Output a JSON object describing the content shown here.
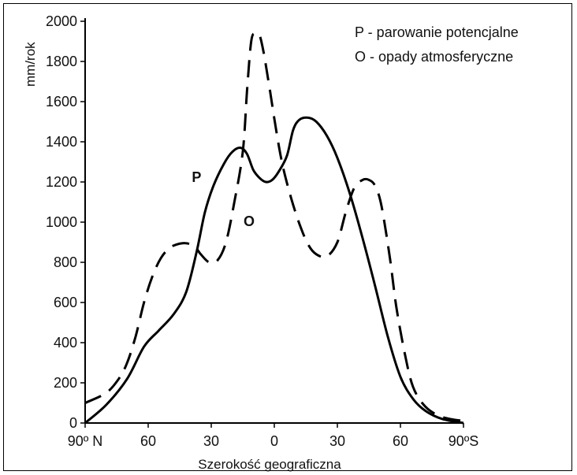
{
  "chart_data": {
    "type": "line",
    "title": "",
    "xlabel": "Szerokość geograficzna",
    "ylabel": "mm/rok",
    "xlim": [
      -90,
      90
    ],
    "ylim": [
      0,
      2000
    ],
    "x_ticks": [
      {
        "value": -90,
        "label": "90º N"
      },
      {
        "value": -60,
        "label": "60"
      },
      {
        "value": -30,
        "label": "30"
      },
      {
        "value": 0,
        "label": "0"
      },
      {
        "value": 30,
        "label": "30"
      },
      {
        "value": 60,
        "label": "60"
      },
      {
        "value": 90,
        "label": "90ºS"
      }
    ],
    "y_ticks": [
      0,
      200,
      400,
      600,
      800,
      1000,
      1200,
      1400,
      1600,
      1800,
      2000
    ],
    "legend": {
      "position": "top-right",
      "entries": [
        "P - parowanie potencjalne",
        "O - opady atmosferyczne"
      ]
    },
    "grid": false,
    "series": [
      {
        "name": "P",
        "style": "solid",
        "x": [
          -90,
          -80,
          -70,
          -62,
          -55,
          -48,
          -42,
          -37,
          -33,
          -29,
          -24,
          -20,
          -16,
          -13,
          -10,
          -7,
          -4,
          -1,
          2,
          6,
          9,
          12,
          16,
          20,
          25,
          30,
          36,
          42,
          48,
          54,
          60,
          66,
          72,
          80,
          90
        ],
        "values": [
          0,
          90,
          220,
          380,
          460,
          540,
          650,
          850,
          1050,
          1180,
          1290,
          1350,
          1370,
          1340,
          1260,
          1220,
          1200,
          1210,
          1250,
          1330,
          1460,
          1510,
          1520,
          1500,
          1430,
          1320,
          1140,
          920,
          680,
          430,
          230,
          120,
          60,
          20,
          0
        ]
      },
      {
        "name": "O",
        "style": "dashed",
        "x": [
          -90,
          -80,
          -74,
          -70,
          -66,
          -62,
          -58,
          -54,
          -50,
          -46,
          -42,
          -38,
          -35,
          -31,
          -27,
          -23,
          -19,
          -15,
          -13,
          -11,
          -9,
          -7,
          -5,
          -2,
          1,
          4,
          8,
          12,
          16,
          20,
          25,
          30,
          34,
          38,
          42,
          45,
          48,
          51,
          55,
          58,
          62,
          66,
          72,
          80,
          90
        ],
        "values": [
          100,
          150,
          220,
          300,
          430,
          600,
          730,
          820,
          870,
          890,
          895,
          880,
          840,
          800,
          810,
          900,
          1100,
          1350,
          1650,
          1900,
          1940,
          1930,
          1840,
          1650,
          1450,
          1280,
          1120,
          990,
          890,
          840,
          830,
          900,
          1050,
          1170,
          1210,
          1210,
          1180,
          1080,
          820,
          580,
          350,
          180,
          80,
          30,
          10
        ]
      }
    ],
    "annotations": [
      {
        "text": "P",
        "x": -37,
        "y": 1200
      },
      {
        "text": "O",
        "x": -12,
        "y": 980
      }
    ]
  }
}
